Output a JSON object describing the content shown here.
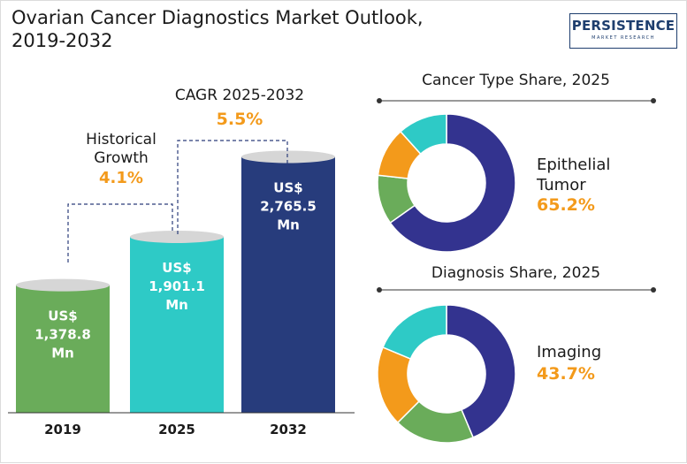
{
  "header": {
    "title_line1": "Ovarian Cancer Diagnostics Market Outlook,",
    "title_line2": "2019-2032",
    "logo_name": "PERSISTENCE",
    "logo_sub": "MARKET RESEARCH"
  },
  "annotations": {
    "historical_label_line1": "Historical",
    "historical_label_line2": "Growth",
    "historical_value": "4.1%",
    "cagr_label": "CAGR 2025-2032",
    "cagr_value": "5.5%"
  },
  "colors": {
    "green": "#6aac5a",
    "teal": "#2ecac6",
    "navy": "#273c7c",
    "orange": "#f39a1b",
    "indigo": "#33338f"
  },
  "chart_data": [
    {
      "type": "bar",
      "categories": [
        "2019",
        "2025",
        "2032"
      ],
      "values": [
        1378.8,
        1901.1,
        2765.5
      ],
      "value_labels": [
        [
          "US$",
          "1,378.8",
          "Mn"
        ],
        [
          "US$",
          "1,901.1",
          "Mn"
        ],
        [
          "US$",
          "2,765.5",
          "Mn"
        ]
      ],
      "colors": [
        "#6aac5a",
        "#2ecac6",
        "#273c7c"
      ]
    },
    {
      "type": "pie",
      "title": "Cancer Type Share, 2025",
      "highlight_label_line1": "Epithelial",
      "highlight_label_line2": "Tumor",
      "highlight_value": "65.2%",
      "slices": [
        {
          "value": 65.2,
          "color": "#33338f"
        },
        {
          "value": 11.6,
          "color": "#6aac5a"
        },
        {
          "value": 11.6,
          "color": "#f39a1b"
        },
        {
          "value": 11.6,
          "color": "#2ecac6"
        }
      ]
    },
    {
      "type": "pie",
      "title": "Diagnosis Share, 2025",
      "highlight_label_line1": "Imaging",
      "highlight_value": "43.7%",
      "slices": [
        {
          "value": 43.7,
          "color": "#33338f"
        },
        {
          "value": 18.8,
          "color": "#6aac5a"
        },
        {
          "value": 18.8,
          "color": "#f39a1b"
        },
        {
          "value": 18.7,
          "color": "#2ecac6"
        }
      ]
    }
  ]
}
